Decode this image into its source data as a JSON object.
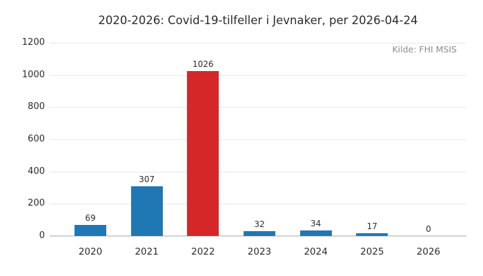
{
  "chart_data": {
    "type": "bar",
    "title": "2020-2026: Covid-19-tilfeller i Jevnaker, per 2026-04-24",
    "annotation": "Kilde: FHI MSIS",
    "categories": [
      "2020",
      "2021",
      "2022",
      "2023",
      "2024",
      "2025",
      "2026"
    ],
    "values": [
      69,
      307,
      1026,
      32,
      34,
      17,
      0
    ],
    "value_labels": [
      "69",
      "307",
      "1026",
      "32",
      "34",
      "17",
      "0"
    ],
    "bar_colors": [
      "#1f77b4",
      "#1f77b4",
      "#d62728",
      "#1f77b4",
      "#1f77b4",
      "#1f77b4",
      "#1f77b4"
    ],
    "xlabel": "",
    "ylabel": "",
    "ylim": [
      0,
      1200
    ],
    "yticks": [
      0,
      200,
      400,
      600,
      800,
      1000,
      1200
    ],
    "grid": true,
    "legend": null,
    "colors": {
      "bar_default": "#1f77b4",
      "bar_highlight": "#d62728",
      "gridline": "#e8e8e8",
      "baseline": "#d2d2d2",
      "text": "#2b2b2b",
      "annotation_text": "#8c8c8c",
      "background": "#ffffff"
    }
  }
}
